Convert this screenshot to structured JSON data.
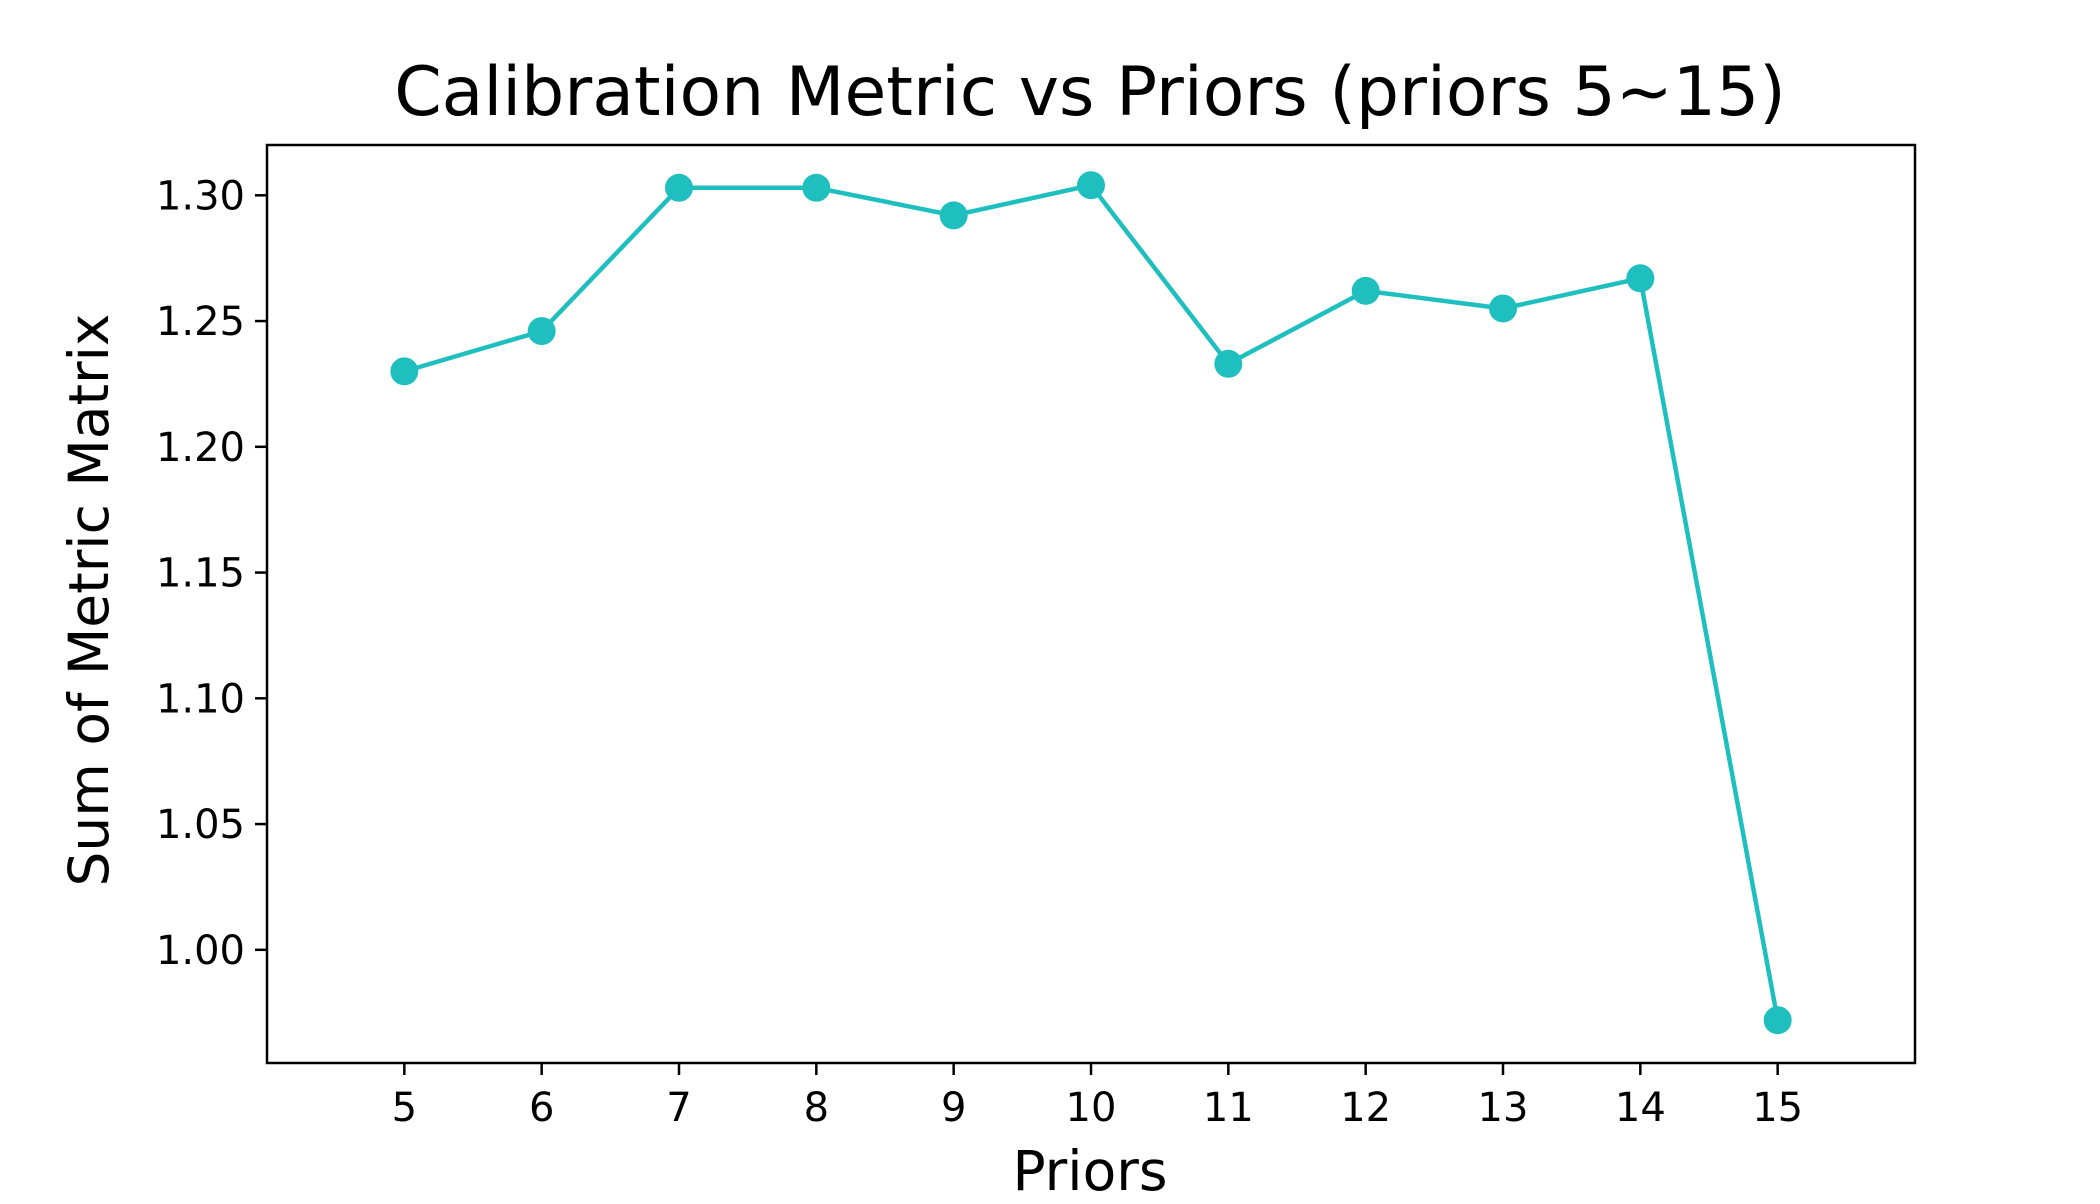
{
  "chart_data": {
    "type": "line",
    "title": "Calibration Metric vs Priors (priors 5~15)",
    "xlabel": "Priors",
    "ylabel": "Sum of Metric Matrix",
    "x": [
      5,
      6,
      7,
      8,
      9,
      10,
      11,
      12,
      13,
      14,
      15
    ],
    "series": [
      {
        "values": [
          1.23,
          1.246,
          1.303,
          1.303,
          1.292,
          1.304,
          1.233,
          1.262,
          1.255,
          1.267,
          0.972
        ],
        "color": "#1fbfbf",
        "marker": "circle"
      }
    ],
    "xlim": [
      4,
      16
    ],
    "ylim": [
      0.955,
      1.32
    ],
    "x_ticks": [
      5,
      6,
      7,
      8,
      9,
      10,
      11,
      12,
      13,
      14,
      15
    ],
    "x_tick_labels": [
      "5",
      "6",
      "7",
      "8",
      "9",
      "10",
      "11",
      "12",
      "13",
      "14",
      "15"
    ],
    "y_ticks": [
      1.0,
      1.05,
      1.1,
      1.15,
      1.2,
      1.25,
      1.3
    ],
    "y_tick_labels": [
      "1.00",
      "1.05",
      "1.10",
      "1.15",
      "1.20",
      "1.25",
      "1.30"
    ],
    "grid": false,
    "legend": "none"
  }
}
